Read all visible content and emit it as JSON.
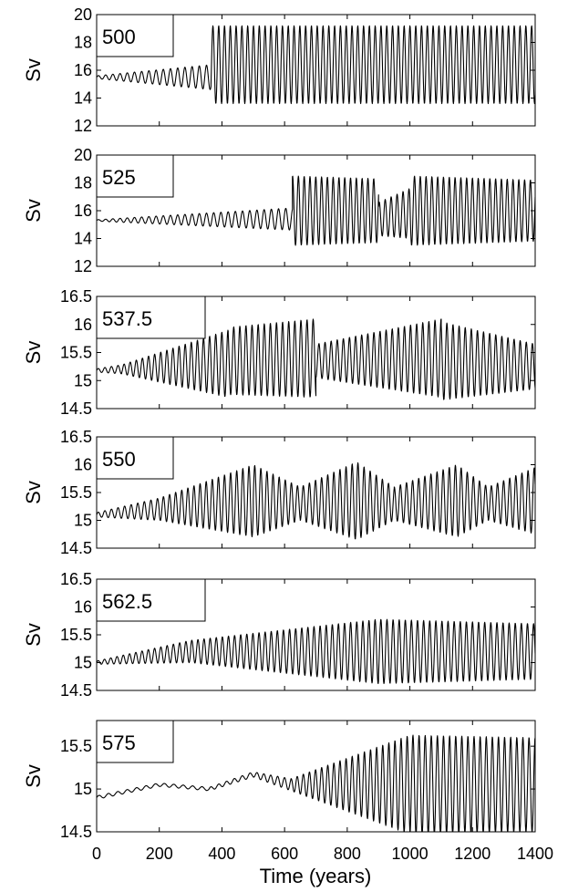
{
  "figure": {
    "xlabel": "Time (years)",
    "x_tick_labels": [
      "0",
      "200",
      "400",
      "600",
      "800",
      "1000",
      "1200",
      "1400"
    ]
  },
  "chart_data": [
    {
      "type": "line",
      "tag": "500",
      "ylabel": "Sv",
      "xlim": [
        0,
        1400
      ],
      "ylim": [
        12,
        20
      ],
      "y_ticks": [
        12,
        14,
        16,
        18,
        20
      ],
      "y_tick_labels": [
        "12",
        "14",
        "16",
        "18",
        "20"
      ],
      "series": [
        {
          "color": "#000000",
          "segments": [
            {
              "start": 0,
              "end": 365,
              "period": 23,
              "center_start": 15.5,
              "center_end": 15.5,
              "amp_start": 0.1,
              "amp_end": 0.9
            },
            {
              "start": 365,
              "end": 1400,
              "period": 18.5,
              "center_start": 16.4,
              "center_end": 16.4,
              "amp_start": 2.8,
              "amp_end": 2.8
            }
          ]
        }
      ]
    },
    {
      "type": "line",
      "tag": "525",
      "ylabel": "Sv",
      "xlim": [
        0,
        1400
      ],
      "ylim": [
        12,
        20
      ],
      "y_ticks": [
        12,
        14,
        16,
        18,
        20
      ],
      "y_tick_labels": [
        "12",
        "14",
        "16",
        "18",
        "20"
      ],
      "series": [
        {
          "color": "#000000",
          "segments": [
            {
              "start": 0,
              "end": 625,
              "period": 23,
              "center_start": 15.3,
              "center_end": 15.4,
              "amp_start": 0.05,
              "amp_end": 0.8
            },
            {
              "start": 625,
              "end": 900,
              "period": 18.5,
              "center_start": 16.0,
              "center_end": 16.0,
              "amp_start": 2.5,
              "amp_end": 2.3
            },
            {
              "start": 900,
              "end": 1000,
              "period": 19,
              "center_start": 15.4,
              "center_end": 15.8,
              "amp_start": 1.2,
              "amp_end": 1.8
            },
            {
              "start": 1000,
              "end": 1400,
              "period": 18.5,
              "center_start": 16.0,
              "center_end": 16.0,
              "amp_start": 2.5,
              "amp_end": 2.2
            }
          ]
        }
      ]
    },
    {
      "type": "line",
      "tag": "537.5",
      "ylabel": "Sv",
      "xlim": [
        0,
        1400
      ],
      "ylim": [
        14.5,
        16.5
      ],
      "y_ticks": [
        14.5,
        15,
        15.5,
        16,
        16.5
      ],
      "y_tick_labels": [
        "14.5",
        "15",
        "15.5",
        "16",
        "16.5"
      ],
      "series": [
        {
          "color": "#000000",
          "segments": [
            {
              "start": 0,
              "end": 80,
              "period": 21,
              "center_start": 15.18,
              "center_end": 15.2,
              "amp_start": 0.03,
              "amp_end": 0.08
            },
            {
              "start": 80,
              "end": 420,
              "period": 19.5,
              "center_start": 15.2,
              "center_end": 15.3,
              "amp_start": 0.08,
              "amp_end": 0.6
            },
            {
              "start": 420,
              "end": 700,
              "period": 19.5,
              "center_start": 15.35,
              "center_end": 15.4,
              "amp_start": 0.6,
              "amp_end": 0.7
            },
            {
              "start": 700,
              "end": 1100,
              "period": 19.5,
              "center_start": 15.35,
              "center_end": 15.4,
              "amp_start": 0.3,
              "amp_end": 0.7
            },
            {
              "start": 1100,
              "end": 1400,
              "period": 19.5,
              "center_start": 15.35,
              "center_end": 15.25,
              "amp_start": 0.7,
              "amp_end": 0.4
            }
          ]
        }
      ]
    },
    {
      "type": "line",
      "tag": "550",
      "ylabel": "Sv",
      "xlim": [
        0,
        1400
      ],
      "ylim": [
        14.5,
        16.5
      ],
      "y_ticks": [
        14.5,
        15,
        15.5,
        16,
        16.5
      ],
      "y_tick_labels": [
        "14.5",
        "15",
        "15.5",
        "16",
        "16.5"
      ],
      "series": [
        {
          "color": "#000000",
          "segments": [
            {
              "start": 0,
              "end": 200,
              "period": 21,
              "center_start": 15.1,
              "center_end": 15.2,
              "amp_start": 0.04,
              "amp_end": 0.2
            },
            {
              "start": 200,
              "end": 500,
              "period": 19.5,
              "center_start": 15.2,
              "center_end": 15.35,
              "amp_start": 0.2,
              "amp_end": 0.65
            },
            {
              "start": 500,
              "end": 650,
              "period": 19.5,
              "center_start": 15.35,
              "center_end": 15.3,
              "amp_start": 0.65,
              "amp_end": 0.3
            },
            {
              "start": 650,
              "end": 830,
              "period": 19.5,
              "center_start": 15.3,
              "center_end": 15.35,
              "amp_start": 0.3,
              "amp_end": 0.7
            },
            {
              "start": 830,
              "end": 950,
              "period": 19.5,
              "center_start": 15.35,
              "center_end": 15.3,
              "amp_start": 0.7,
              "amp_end": 0.3
            },
            {
              "start": 950,
              "end": 1150,
              "period": 19.5,
              "center_start": 15.3,
              "center_end": 15.35,
              "amp_start": 0.3,
              "amp_end": 0.65
            },
            {
              "start": 1150,
              "end": 1250,
              "period": 19.5,
              "center_start": 15.35,
              "center_end": 15.3,
              "amp_start": 0.65,
              "amp_end": 0.3
            },
            {
              "start": 1250,
              "end": 1400,
              "period": 19.5,
              "center_start": 15.3,
              "center_end": 15.35,
              "amp_start": 0.3,
              "amp_end": 0.6
            }
          ]
        }
      ]
    },
    {
      "type": "line",
      "tag": "562.5",
      "ylabel": "Sv",
      "xlim": [
        0,
        1400
      ],
      "ylim": [
        14.5,
        16.5
      ],
      "y_ticks": [
        14.5,
        15,
        15.5,
        16,
        16.5
      ],
      "y_tick_labels": [
        "14.5",
        "15",
        "15.5",
        "16",
        "16.5"
      ],
      "series": [
        {
          "color": "#000000",
          "segments": [
            {
              "start": 0,
              "end": 300,
              "period": 20,
              "center_start": 15.0,
              "center_end": 15.2,
              "amp_start": 0.03,
              "amp_end": 0.2
            },
            {
              "start": 300,
              "end": 900,
              "period": 19.5,
              "center_start": 15.2,
              "center_end": 15.2,
              "amp_start": 0.2,
              "amp_end": 0.58
            },
            {
              "start": 900,
              "end": 1400,
              "period": 19.5,
              "center_start": 15.2,
              "center_end": 15.2,
              "amp_start": 0.58,
              "amp_end": 0.5
            }
          ]
        }
      ]
    },
    {
      "type": "line",
      "tag": "575",
      "ylabel": "Sv",
      "xlim": [
        0,
        1400
      ],
      "ylim": [
        14.5,
        15.8
      ],
      "y_ticks": [
        14.5,
        15,
        15.5
      ],
      "y_tick_labels": [
        "14.5",
        "15",
        "15.5"
      ],
      "series": [
        {
          "color": "#000000",
          "segments": [
            {
              "start": 0,
              "end": 200,
              "period": 30,
              "center_start": 14.9,
              "center_end": 15.05,
              "amp_start": 0.02,
              "amp_end": 0.02
            },
            {
              "start": 200,
              "end": 360,
              "period": 30,
              "center_start": 15.05,
              "center_end": 15.0,
              "amp_start": 0.02,
              "amp_end": 0.02
            },
            {
              "start": 360,
              "end": 500,
              "period": 25,
              "center_start": 15.0,
              "center_end": 15.17,
              "amp_start": 0.02,
              "amp_end": 0.03
            },
            {
              "start": 500,
              "end": 620,
              "period": 22,
              "center_start": 15.17,
              "center_end": 15.05,
              "amp_start": 0.03,
              "amp_end": 0.07
            },
            {
              "start": 620,
              "end": 1000,
              "period": 19.5,
              "center_start": 15.05,
              "center_end": 15.05,
              "amp_start": 0.07,
              "amp_end": 0.58
            },
            {
              "start": 1000,
              "end": 1400,
              "period": 19.5,
              "center_start": 15.05,
              "center_end": 15.05,
              "amp_start": 0.58,
              "amp_end": 0.55
            }
          ]
        }
      ]
    }
  ]
}
